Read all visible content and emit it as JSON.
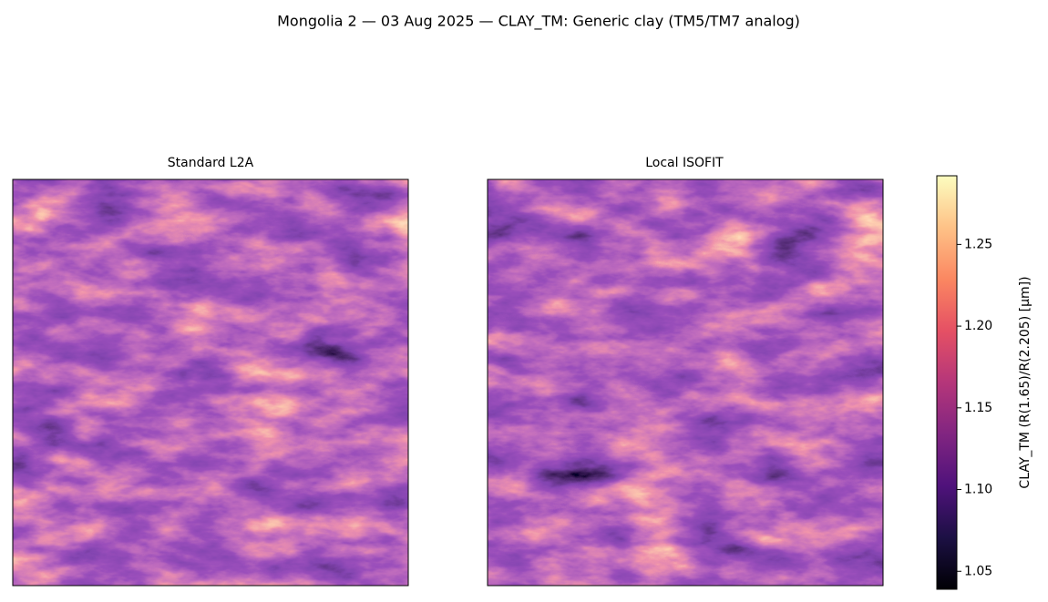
{
  "chart_data": {
    "type": "image",
    "title": "Mongolia 2 — 03 Aug 2025 — CLAY_TM: Generic clay (TM5/TM7 analog)",
    "panels": [
      {
        "title": "Standard L2A"
      },
      {
        "title": "Local ISOFIT"
      }
    ],
    "colorbar": {
      "label": "CLAY_TM  (R(1.65)/R(2.205)  [µm])",
      "colormap": "magma",
      "lim": [
        1.039,
        1.292
      ],
      "ticks": [
        1.05,
        {
          "value": 1.1,
          "label": "1.10"
        },
        1.15,
        {
          "value": 1.2,
          "label": "1.20"
        },
        1.25
      ]
    }
  }
}
